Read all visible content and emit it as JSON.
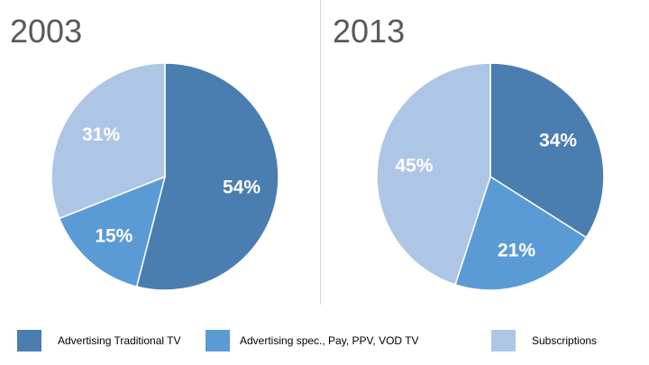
{
  "chart_data": [
    {
      "type": "pie",
      "title": "2003",
      "categories": [
        "Advertising Traditional TV",
        "Advertising spec., Pay, PPV, VOD TV",
        "Subscriptions"
      ],
      "values": [
        54,
        15,
        31
      ],
      "labels": [
        "54%",
        "15%",
        "31%"
      ],
      "colors": [
        "#4a7eb0",
        "#5b9bd5",
        "#adc6e5"
      ],
      "start_angle_deg": 0,
      "direction": "clockwise"
    },
    {
      "type": "pie",
      "title": "2013",
      "categories": [
        "Advertising Traditional TV",
        "Advertising spec., Pay, PPV, VOD TV",
        "Subscriptions"
      ],
      "values": [
        34,
        21,
        45
      ],
      "labels": [
        "34%",
        "21%",
        "45%"
      ],
      "colors": [
        "#4a7eb0",
        "#5b9bd5",
        "#adc6e5"
      ],
      "start_angle_deg": 0,
      "direction": "clockwise"
    }
  ],
  "legend": {
    "placement": "bottom",
    "items": [
      {
        "label": "Advertising Traditional TV",
        "color": "#4a7eb0"
      },
      {
        "label": "Advertising spec., Pay, PPV, VOD TV",
        "color": "#5b9bd5"
      },
      {
        "label": "Subscriptions",
        "color": "#adc6e5"
      }
    ]
  }
}
